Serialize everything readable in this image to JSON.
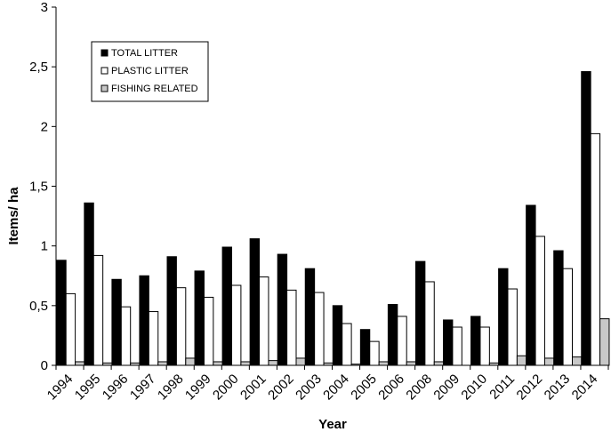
{
  "chart_data": {
    "type": "bar",
    "title": "",
    "xlabel": "Year",
    "ylabel": "Items/ ha",
    "ylim": [
      0,
      3
    ],
    "yticks": [
      0,
      0.5,
      1,
      1.5,
      2,
      2.5,
      3
    ],
    "ytick_labels": [
      "0",
      "0,5",
      "1",
      "1,5",
      "2",
      "2,5",
      "3"
    ],
    "grid": false,
    "legend_position": "top-left",
    "categories": [
      "1994",
      "1995",
      "1996",
      "1997",
      "1998",
      "1999",
      "2000",
      "2001",
      "2002",
      "2003",
      "2004",
      "2005",
      "2006",
      "2008",
      "2009",
      "2010",
      "2011",
      "2012",
      "2013",
      "2014"
    ],
    "series": [
      {
        "name": "TOTAL LITTER",
        "color": "#000000",
        "values": [
          0.88,
          1.36,
          0.72,
          0.75,
          0.91,
          0.79,
          0.99,
          1.06,
          0.93,
          0.81,
          0.5,
          0.3,
          0.51,
          0.87,
          0.38,
          0.41,
          0.81,
          1.34,
          0.96,
          2.46
        ]
      },
      {
        "name": "PLASTIC LITTER",
        "color": "#ffffff",
        "values": [
          0.6,
          0.92,
          0.49,
          0.45,
          0.65,
          0.57,
          0.67,
          0.74,
          0.63,
          0.61,
          0.35,
          0.2,
          0.41,
          0.7,
          0.32,
          0.32,
          0.64,
          1.08,
          0.81,
          1.94
        ]
      },
      {
        "name": "FISHING RELATED",
        "color": "#c8c8c8",
        "values": [
          0.03,
          0.02,
          0.02,
          0.03,
          0.06,
          0.03,
          0.03,
          0.04,
          0.06,
          0.02,
          0.01,
          0.03,
          0.03,
          0.03,
          0.0,
          0.02,
          0.08,
          0.06,
          0.07,
          0.39
        ]
      }
    ]
  }
}
